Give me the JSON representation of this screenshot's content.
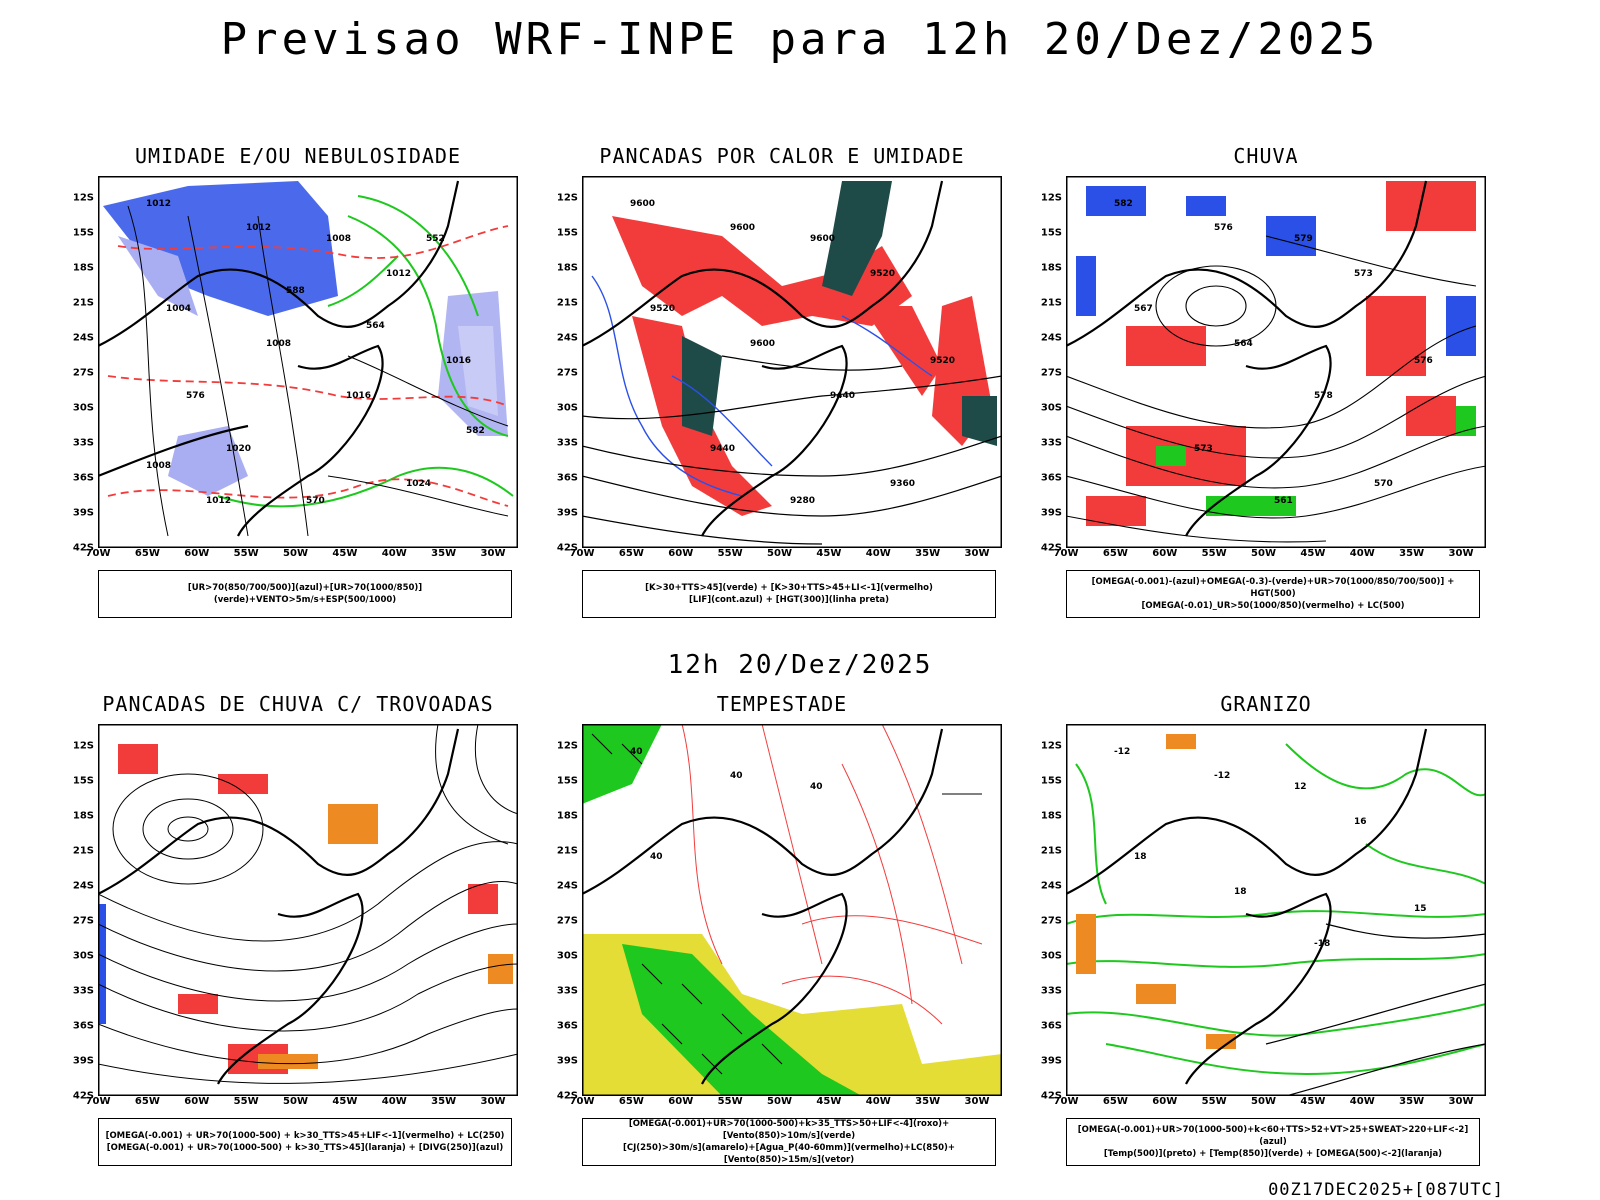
{
  "title": "Previsao WRF-INPE  para 12h 20/Dez/2025",
  "middle_title": "12h 20/Dez/2025",
  "footer": "00Z17DEC2025+[087UTC]",
  "lat_labels": [
    "12S",
    "15S",
    "18S",
    "21S",
    "24S",
    "27S",
    "30S",
    "33S",
    "36S",
    "39S",
    "42S"
  ],
  "lon_labels": [
    "70W",
    "65W",
    "60W",
    "55W",
    "50W",
    "45W",
    "40W",
    "35W",
    "30W"
  ],
  "colors": {
    "blue": "#2b50e8",
    "lightblue": "#a9aef2",
    "green": "#1ec81e",
    "red": "#f23c3c",
    "darkteal": "#1e4a48",
    "yellow": "#e3dd35",
    "orange": "#ee8a22"
  },
  "panels": [
    {
      "title": "UMIDADE E/OU NEBULOSIDADE",
      "caption": [
        "[UR>70(850/700/500)](azul)+[UR>70(1000/850)](verde)+VENTO>5m/s+ESP(500/1000)"
      ],
      "contour_labels": [
        "1012",
        "1012",
        "1008",
        "1004",
        "1008",
        "1012",
        "1016",
        "1016",
        "1020",
        "1024",
        "570",
        "576",
        "582",
        "588",
        "564",
        "552",
        "1012",
        "1008"
      ]
    },
    {
      "title": "PANCADAS POR CALOR E UMIDADE",
      "caption": [
        "[K>30+TTS>45](verde) + [K>30+TTS>45+LI<-1](vermelho)",
        "[LIF](cont.azul) + [HGT(300)](linha preta)"
      ],
      "contour_labels": [
        "9600",
        "9600",
        "9600",
        "9520",
        "9600",
        "9520",
        "9520",
        "9440",
        "9440",
        "9360",
        "9280"
      ]
    },
    {
      "title": "CHUVA",
      "caption": [
        "[OMEGA(-0.001)-(azul)+OMEGA(-0.3)-(verde)+UR>70(1000/850/700/500)] + HGT(500)",
        "[OMEGA(-0.01)_UR>50(1000/850)(vermelho) + LC(500)"
      ],
      "contour_labels": [
        "582",
        "576",
        "579",
        "567",
        "564",
        "573",
        "576",
        "578",
        "573",
        "570",
        "561"
      ]
    },
    {
      "title": "PANCADAS DE CHUVA C/ TROVOADAS",
      "caption": [
        "[OMEGA(-0.001) + UR>70(1000-500) + k>30_TTS>45+LIF<-1](vermelho) + LC(250)",
        "[OMEGA(-0.001) + UR>70(1000-500) + k>30_TTS>45](laranja) + [DIVG(250)](azul)"
      ],
      "contour_labels": []
    },
    {
      "title": "TEMPESTADE",
      "caption": [
        "[OMEGA(-0.001)+UR>70(1000-500)+k>35_TTS>50+LIF<-4](roxo)+[Vento(850)>10m/s](verde)",
        "[CJ(250)>30m/s](amarelo)+[Agua_P(40-60mm)](vermelho)+LC(850)+[Vento(850)>15m/s](vetor)"
      ],
      "contour_labels": [
        "40",
        "40",
        "40",
        "40"
      ]
    },
    {
      "title": "GRANIZO",
      "caption": [
        "[OMEGA(-0.001)+UR>70(1000-500)+k<60+TTS>52+VT>25+SWEAT>220+LIF<-2](azul)",
        "[Temp(500)](preto) + [Temp(850)](verde) + [OMEGA(500)<-2](laranja)"
      ],
      "contour_labels": [
        "-12",
        "-12",
        "12",
        "18",
        "18",
        "16",
        "15",
        "-18"
      ]
    }
  ]
}
